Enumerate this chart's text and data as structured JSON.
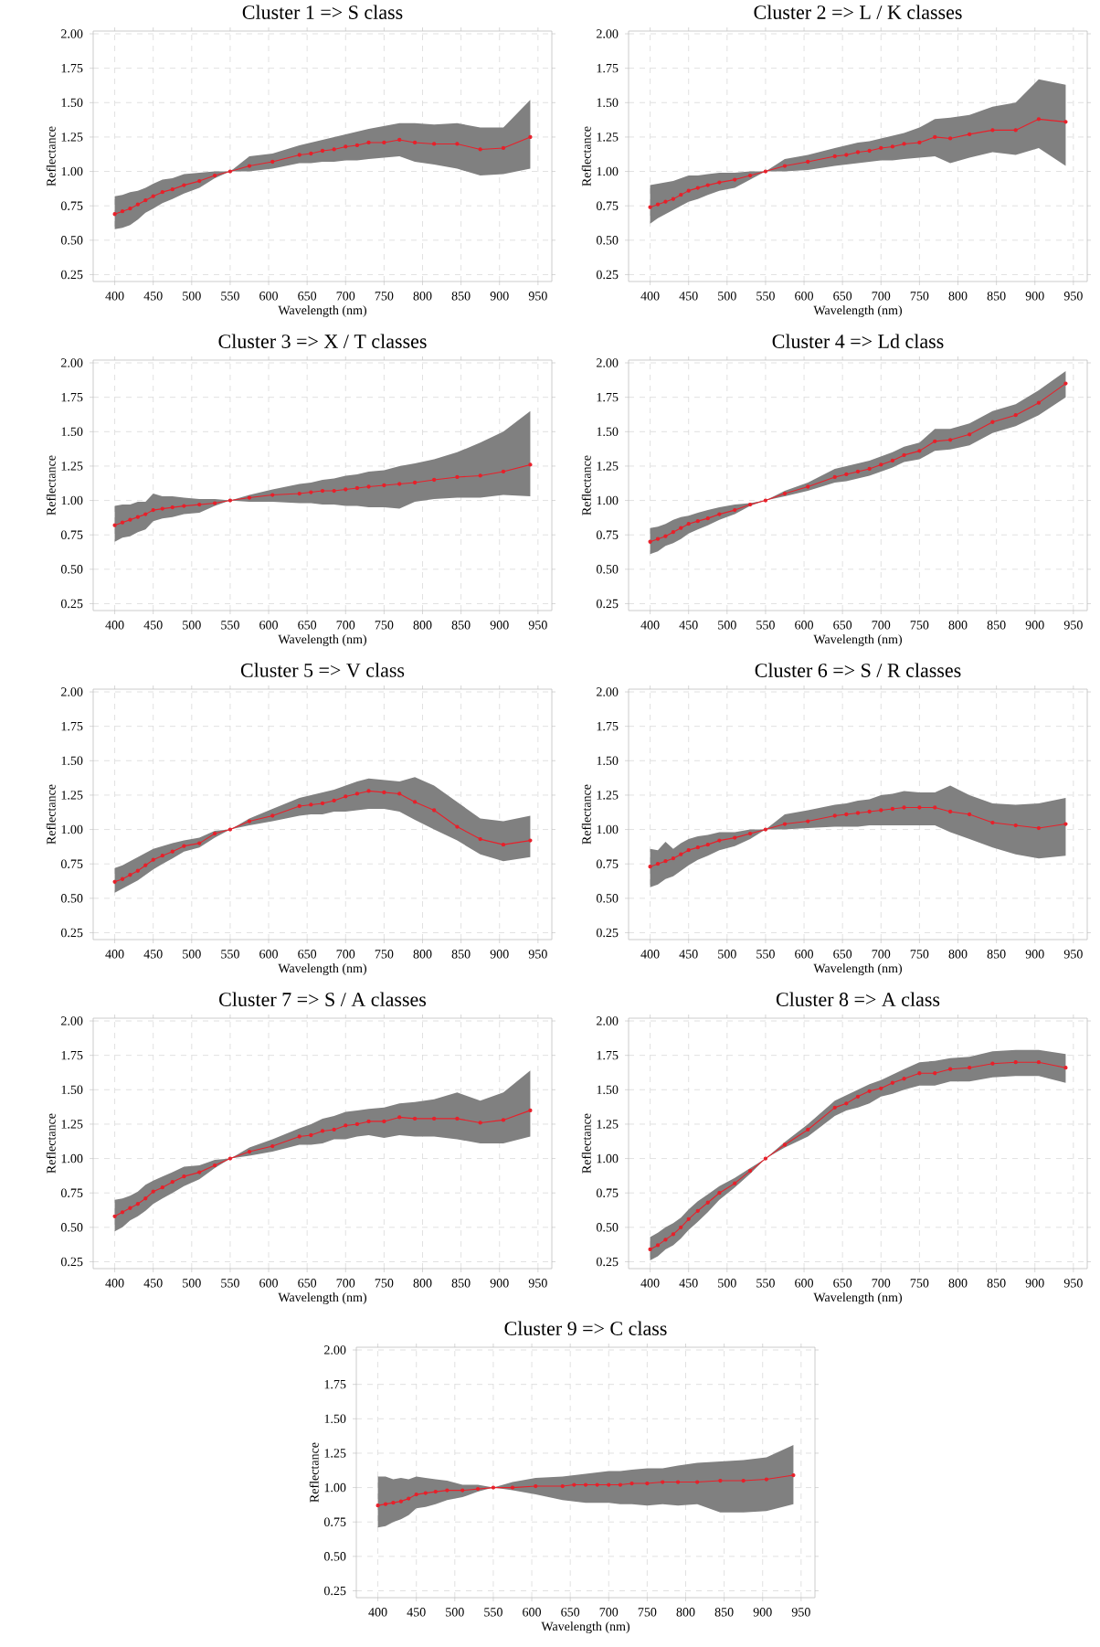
{
  "chart_data": [
    {
      "type": "line",
      "title": "Cluster 1 => S class",
      "xlabel": "Wavelength (nm)",
      "ylabel": "Reflectance",
      "xlim": [
        372,
        968
      ],
      "ylim": [
        0.2,
        2.02
      ],
      "xticks": [
        400,
        450,
        500,
        550,
        600,
        650,
        700,
        750,
        800,
        850,
        900,
        950
      ],
      "yticks": [
        {
          "value": 0.25,
          "label": "0.25"
        },
        {
          "value": 0.5,
          "label": "0.50"
        },
        {
          "value": 0.75,
          "label": "0.75"
        },
        {
          "value": 1.0,
          "label": "1.00"
        },
        {
          "value": 1.25,
          "label": "1.25"
        },
        {
          "value": 1.5,
          "label": "1.50"
        },
        {
          "value": 1.75,
          "label": "1.75"
        },
        {
          "value": 2.0,
          "label": "2.00"
        }
      ],
      "grid": true,
      "marker": "circle",
      "x": [
        400,
        410,
        420,
        430,
        440,
        450,
        462,
        475,
        490,
        510,
        530,
        550,
        575,
        605,
        640,
        655,
        670,
        685,
        700,
        715,
        730,
        750,
        770,
        790,
        815,
        845,
        875,
        905,
        940
      ],
      "series": [
        {
          "color": "#e8202a",
          "values": [
            0.69,
            0.71,
            0.73,
            0.76,
            0.79,
            0.82,
            0.85,
            0.87,
            0.9,
            0.93,
            0.97,
            1.0,
            1.04,
            1.07,
            1.12,
            1.13,
            1.15,
            1.16,
            1.18,
            1.19,
            1.21,
            1.21,
            1.23,
            1.21,
            1.2,
            1.2,
            1.16,
            1.17,
            1.25
          ],
          "lower": [
            0.58,
            0.59,
            0.61,
            0.65,
            0.7,
            0.73,
            0.77,
            0.8,
            0.84,
            0.88,
            0.95,
            1.0,
            1.0,
            1.02,
            1.06,
            1.06,
            1.07,
            1.07,
            1.08,
            1.08,
            1.09,
            1.1,
            1.11,
            1.07,
            1.05,
            1.02,
            0.97,
            0.98,
            1.02
          ],
          "upper": [
            0.82,
            0.83,
            0.85,
            0.86,
            0.88,
            0.91,
            0.94,
            0.95,
            0.98,
            0.99,
            1.0,
            1.0,
            1.11,
            1.13,
            1.19,
            1.21,
            1.23,
            1.25,
            1.27,
            1.29,
            1.31,
            1.33,
            1.35,
            1.35,
            1.34,
            1.35,
            1.32,
            1.32,
            1.52
          ]
        }
      ]
    },
    {
      "type": "line",
      "title": "Cluster 2 => L / K classes",
      "xlabel": "Wavelength (nm)",
      "ylabel": "Reflectance",
      "xlim": [
        372,
        968
      ],
      "ylim": [
        0.2,
        2.02
      ],
      "xticks": [
        400,
        450,
        500,
        550,
        600,
        650,
        700,
        750,
        800,
        850,
        900,
        950
      ],
      "yticks": [
        {
          "value": 0.25,
          "label": "0.25"
        },
        {
          "value": 0.5,
          "label": "0.50"
        },
        {
          "value": 0.75,
          "label": "0.75"
        },
        {
          "value": 1.0,
          "label": "1.00"
        },
        {
          "value": 1.25,
          "label": "1.25"
        },
        {
          "value": 1.5,
          "label": "1.50"
        },
        {
          "value": 1.75,
          "label": "1.75"
        },
        {
          "value": 2.0,
          "label": "2.00"
        }
      ],
      "grid": true,
      "marker": "circle",
      "x": [
        400,
        410,
        420,
        430,
        440,
        450,
        462,
        475,
        490,
        510,
        530,
        550,
        575,
        605,
        640,
        655,
        670,
        685,
        700,
        715,
        730,
        750,
        770,
        790,
        815,
        845,
        875,
        905,
        940
      ],
      "series": [
        {
          "color": "#e8202a",
          "values": [
            0.74,
            0.76,
            0.78,
            0.8,
            0.83,
            0.86,
            0.88,
            0.9,
            0.92,
            0.94,
            0.97,
            1.0,
            1.04,
            1.07,
            1.11,
            1.12,
            1.14,
            1.15,
            1.17,
            1.18,
            1.2,
            1.21,
            1.25,
            1.24,
            1.27,
            1.3,
            1.3,
            1.38,
            1.36
          ],
          "lower": [
            0.62,
            0.66,
            0.69,
            0.72,
            0.75,
            0.78,
            0.8,
            0.83,
            0.86,
            0.88,
            0.94,
            1.0,
            1.0,
            1.01,
            1.04,
            1.05,
            1.06,
            1.07,
            1.08,
            1.08,
            1.09,
            1.1,
            1.11,
            1.06,
            1.1,
            1.14,
            1.12,
            1.17,
            1.04
          ],
          "upper": [
            0.9,
            0.91,
            0.92,
            0.93,
            0.95,
            0.97,
            0.97,
            0.98,
            0.99,
            0.99,
            1.0,
            1.0,
            1.09,
            1.12,
            1.17,
            1.19,
            1.21,
            1.22,
            1.24,
            1.26,
            1.28,
            1.32,
            1.38,
            1.39,
            1.41,
            1.47,
            1.5,
            1.67,
            1.63
          ]
        }
      ]
    },
    {
      "type": "line",
      "title": "Cluster 3 => X / T classes",
      "xlabel": "Wavelength (nm)",
      "ylabel": "Reflectance",
      "xlim": [
        372,
        968
      ],
      "ylim": [
        0.2,
        2.02
      ],
      "xticks": [
        400,
        450,
        500,
        550,
        600,
        650,
        700,
        750,
        800,
        850,
        900,
        950
      ],
      "yticks": [
        {
          "value": 0.25,
          "label": "0.25"
        },
        {
          "value": 0.5,
          "label": "0.50"
        },
        {
          "value": 0.75,
          "label": "0.75"
        },
        {
          "value": 1.0,
          "label": "1.00"
        },
        {
          "value": 1.25,
          "label": "1.25"
        },
        {
          "value": 1.5,
          "label": "1.50"
        },
        {
          "value": 1.75,
          "label": "1.75"
        },
        {
          "value": 2.0,
          "label": "2.00"
        }
      ],
      "grid": true,
      "marker": "circle",
      "x": [
        400,
        410,
        420,
        430,
        440,
        450,
        462,
        475,
        490,
        510,
        530,
        550,
        575,
        605,
        640,
        655,
        670,
        685,
        700,
        715,
        730,
        750,
        770,
        790,
        815,
        845,
        875,
        905,
        940
      ],
      "series": [
        {
          "color": "#e8202a",
          "values": [
            0.82,
            0.84,
            0.86,
            0.88,
            0.9,
            0.93,
            0.94,
            0.95,
            0.96,
            0.97,
            0.98,
            1.0,
            1.02,
            1.04,
            1.05,
            1.06,
            1.07,
            1.07,
            1.08,
            1.09,
            1.1,
            1.11,
            1.12,
            1.13,
            1.15,
            1.17,
            1.18,
            1.21,
            1.26
          ],
          "lower": [
            0.7,
            0.73,
            0.74,
            0.77,
            0.79,
            0.85,
            0.87,
            0.88,
            0.9,
            0.91,
            0.96,
            1.0,
            0.99,
            0.99,
            0.98,
            0.98,
            0.97,
            0.97,
            0.96,
            0.96,
            0.95,
            0.95,
            0.94,
            0.99,
            1.01,
            1.02,
            1.02,
            1.04,
            1.03
          ],
          "upper": [
            0.96,
            0.97,
            0.97,
            0.99,
            0.99,
            1.05,
            1.03,
            1.03,
            1.02,
            1.01,
            1.01,
            1.0,
            1.04,
            1.08,
            1.12,
            1.13,
            1.15,
            1.16,
            1.18,
            1.19,
            1.21,
            1.22,
            1.25,
            1.27,
            1.3,
            1.35,
            1.42,
            1.5,
            1.65
          ]
        }
      ]
    },
    {
      "type": "line",
      "title": "Cluster 4 => Ld class",
      "xlabel": "Wavelength (nm)",
      "ylabel": "Reflectance",
      "xlim": [
        372,
        968
      ],
      "ylim": [
        0.2,
        2.02
      ],
      "xticks": [
        400,
        450,
        500,
        550,
        600,
        650,
        700,
        750,
        800,
        850,
        900,
        950
      ],
      "yticks": [
        {
          "value": 0.25,
          "label": "0.25"
        },
        {
          "value": 0.5,
          "label": "0.50"
        },
        {
          "value": 0.75,
          "label": "0.75"
        },
        {
          "value": 1.0,
          "label": "1.00"
        },
        {
          "value": 1.25,
          "label": "1.25"
        },
        {
          "value": 1.5,
          "label": "1.50"
        },
        {
          "value": 1.75,
          "label": "1.75"
        },
        {
          "value": 2.0,
          "label": "2.00"
        }
      ],
      "grid": true,
      "marker": "circle",
      "x": [
        400,
        410,
        420,
        430,
        440,
        450,
        462,
        475,
        490,
        510,
        530,
        550,
        575,
        605,
        640,
        655,
        670,
        685,
        700,
        715,
        730,
        750,
        770,
        790,
        815,
        845,
        875,
        905,
        940
      ],
      "series": [
        {
          "color": "#e8202a",
          "values": [
            0.7,
            0.72,
            0.74,
            0.77,
            0.8,
            0.83,
            0.85,
            0.87,
            0.9,
            0.93,
            0.97,
            1.0,
            1.05,
            1.1,
            1.17,
            1.19,
            1.21,
            1.23,
            1.26,
            1.29,
            1.33,
            1.36,
            1.43,
            1.44,
            1.48,
            1.57,
            1.62,
            1.71,
            1.85
          ],
          "lower": [
            0.61,
            0.63,
            0.67,
            0.69,
            0.72,
            0.76,
            0.79,
            0.82,
            0.86,
            0.9,
            0.96,
            1.0,
            1.03,
            1.07,
            1.13,
            1.14,
            1.16,
            1.18,
            1.21,
            1.24,
            1.28,
            1.3,
            1.36,
            1.37,
            1.4,
            1.49,
            1.54,
            1.62,
            1.75
          ],
          "upper": [
            0.8,
            0.81,
            0.83,
            0.86,
            0.88,
            0.89,
            0.91,
            0.93,
            0.95,
            0.97,
            0.98,
            1.0,
            1.07,
            1.13,
            1.23,
            1.25,
            1.27,
            1.29,
            1.32,
            1.35,
            1.39,
            1.42,
            1.52,
            1.52,
            1.56,
            1.65,
            1.7,
            1.8,
            1.94
          ]
        }
      ]
    },
    {
      "type": "line",
      "title": "Cluster 5 => V class",
      "xlabel": "Wavelength (nm)",
      "ylabel": "Reflectance",
      "xlim": [
        372,
        968
      ],
      "ylim": [
        0.2,
        2.02
      ],
      "xticks": [
        400,
        450,
        500,
        550,
        600,
        650,
        700,
        750,
        800,
        850,
        900,
        950
      ],
      "yticks": [
        {
          "value": 0.25,
          "label": "0.25"
        },
        {
          "value": 0.5,
          "label": "0.50"
        },
        {
          "value": 0.75,
          "label": "0.75"
        },
        {
          "value": 1.0,
          "label": "1.00"
        },
        {
          "value": 1.25,
          "label": "1.25"
        },
        {
          "value": 1.5,
          "label": "1.50"
        },
        {
          "value": 1.75,
          "label": "1.75"
        },
        {
          "value": 2.0,
          "label": "2.00"
        }
      ],
      "grid": true,
      "marker": "circle",
      "x": [
        400,
        410,
        420,
        430,
        440,
        450,
        462,
        475,
        490,
        510,
        530,
        550,
        575,
        605,
        640,
        655,
        670,
        685,
        700,
        715,
        730,
        750,
        770,
        790,
        815,
        845,
        875,
        905,
        940
      ],
      "series": [
        {
          "color": "#e8202a",
          "values": [
            0.62,
            0.64,
            0.67,
            0.7,
            0.74,
            0.78,
            0.81,
            0.84,
            0.88,
            0.9,
            0.97,
            1.0,
            1.06,
            1.1,
            1.17,
            1.18,
            1.19,
            1.21,
            1.24,
            1.26,
            1.28,
            1.27,
            1.26,
            1.2,
            1.14,
            1.02,
            0.93,
            0.89,
            0.92
          ],
          "lower": [
            0.54,
            0.57,
            0.6,
            0.63,
            0.67,
            0.71,
            0.75,
            0.79,
            0.84,
            0.87,
            0.94,
            1.0,
            1.03,
            1.06,
            1.1,
            1.11,
            1.11,
            1.13,
            1.13,
            1.14,
            1.15,
            1.15,
            1.13,
            1.07,
            1.0,
            0.92,
            0.82,
            0.77,
            0.8
          ],
          "upper": [
            0.72,
            0.74,
            0.77,
            0.8,
            0.83,
            0.86,
            0.88,
            0.9,
            0.92,
            0.94,
            0.99,
            1.0,
            1.08,
            1.15,
            1.23,
            1.25,
            1.27,
            1.29,
            1.32,
            1.35,
            1.37,
            1.36,
            1.35,
            1.38,
            1.32,
            1.2,
            1.08,
            1.06,
            1.1
          ]
        }
      ]
    },
    {
      "type": "line",
      "title": "Cluster 6 => S / R classes",
      "xlabel": "Wavelength (nm)",
      "ylabel": "Reflectance",
      "xlim": [
        372,
        968
      ],
      "ylim": [
        0.2,
        2.02
      ],
      "xticks": [
        400,
        450,
        500,
        550,
        600,
        650,
        700,
        750,
        800,
        850,
        900,
        950
      ],
      "yticks": [
        {
          "value": 0.25,
          "label": "0.25"
        },
        {
          "value": 0.5,
          "label": "0.50"
        },
        {
          "value": 0.75,
          "label": "0.75"
        },
        {
          "value": 1.0,
          "label": "1.00"
        },
        {
          "value": 1.25,
          "label": "1.25"
        },
        {
          "value": 1.5,
          "label": "1.50"
        },
        {
          "value": 1.75,
          "label": "1.75"
        },
        {
          "value": 2.0,
          "label": "2.00"
        }
      ],
      "grid": true,
      "marker": "circle",
      "x": [
        400,
        410,
        420,
        430,
        440,
        450,
        462,
        475,
        490,
        510,
        530,
        550,
        575,
        605,
        640,
        655,
        670,
        685,
        700,
        715,
        730,
        750,
        770,
        790,
        815,
        845,
        875,
        905,
        940
      ],
      "series": [
        {
          "color": "#e8202a",
          "values": [
            0.73,
            0.75,
            0.77,
            0.79,
            0.82,
            0.85,
            0.87,
            0.89,
            0.92,
            0.94,
            0.97,
            1.0,
            1.04,
            1.06,
            1.1,
            1.11,
            1.12,
            1.13,
            1.14,
            1.15,
            1.16,
            1.16,
            1.16,
            1.13,
            1.11,
            1.05,
            1.03,
            1.01,
            1.04
          ],
          "lower": [
            0.58,
            0.6,
            0.64,
            0.66,
            0.7,
            0.74,
            0.78,
            0.81,
            0.85,
            0.88,
            0.93,
            1.0,
            1.0,
            1.01,
            1.02,
            1.02,
            1.02,
            1.03,
            1.03,
            1.03,
            1.03,
            1.03,
            1.03,
            0.98,
            0.93,
            0.87,
            0.82,
            0.79,
            0.81
          ],
          "upper": [
            0.86,
            0.85,
            0.91,
            0.86,
            0.9,
            0.93,
            0.95,
            0.96,
            0.98,
            0.98,
            1.0,
            1.0,
            1.11,
            1.14,
            1.18,
            1.19,
            1.21,
            1.22,
            1.25,
            1.26,
            1.28,
            1.27,
            1.27,
            1.32,
            1.25,
            1.19,
            1.18,
            1.19,
            1.23
          ]
        }
      ]
    },
    {
      "type": "line",
      "title": "Cluster 7 => S / A classes",
      "xlabel": "Wavelength (nm)",
      "ylabel": "Reflectance",
      "xlim": [
        372,
        968
      ],
      "ylim": [
        0.2,
        2.02
      ],
      "xticks": [
        400,
        450,
        500,
        550,
        600,
        650,
        700,
        750,
        800,
        850,
        900,
        950
      ],
      "yticks": [
        {
          "value": 0.25,
          "label": "0.25"
        },
        {
          "value": 0.5,
          "label": "0.50"
        },
        {
          "value": 0.75,
          "label": "0.75"
        },
        {
          "value": 1.0,
          "label": "1.00"
        },
        {
          "value": 1.25,
          "label": "1.25"
        },
        {
          "value": 1.5,
          "label": "1.50"
        },
        {
          "value": 1.75,
          "label": "1.75"
        },
        {
          "value": 2.0,
          "label": "2.00"
        }
      ],
      "grid": true,
      "marker": "circle",
      "x": [
        400,
        410,
        420,
        430,
        440,
        450,
        462,
        475,
        490,
        510,
        530,
        550,
        575,
        605,
        640,
        655,
        670,
        685,
        700,
        715,
        730,
        750,
        770,
        790,
        815,
        845,
        875,
        905,
        940
      ],
      "series": [
        {
          "color": "#e8202a",
          "values": [
            0.58,
            0.61,
            0.64,
            0.67,
            0.71,
            0.76,
            0.79,
            0.83,
            0.87,
            0.9,
            0.95,
            1.0,
            1.05,
            1.09,
            1.16,
            1.17,
            1.2,
            1.21,
            1.24,
            1.25,
            1.27,
            1.27,
            1.3,
            1.29,
            1.29,
            1.29,
            1.26,
            1.28,
            1.35
          ],
          "lower": [
            0.47,
            0.5,
            0.55,
            0.58,
            0.62,
            0.67,
            0.71,
            0.75,
            0.8,
            0.85,
            0.93,
            1.0,
            1.02,
            1.05,
            1.1,
            1.1,
            1.11,
            1.14,
            1.14,
            1.16,
            1.17,
            1.15,
            1.17,
            1.16,
            1.16,
            1.14,
            1.11,
            1.11,
            1.16
          ],
          "upper": [
            0.7,
            0.71,
            0.73,
            0.76,
            0.81,
            0.84,
            0.87,
            0.9,
            0.94,
            0.95,
            0.99,
            1.0,
            1.08,
            1.14,
            1.22,
            1.25,
            1.29,
            1.31,
            1.34,
            1.35,
            1.36,
            1.37,
            1.4,
            1.41,
            1.43,
            1.48,
            1.42,
            1.48,
            1.64
          ]
        }
      ]
    },
    {
      "type": "line",
      "title": "Cluster 8 => A class",
      "xlabel": "Wavelength (nm)",
      "ylabel": "Reflectance",
      "xlim": [
        372,
        968
      ],
      "ylim": [
        0.2,
        2.02
      ],
      "xticks": [
        400,
        450,
        500,
        550,
        600,
        650,
        700,
        750,
        800,
        850,
        900,
        950
      ],
      "yticks": [
        {
          "value": 0.25,
          "label": "0.25"
        },
        {
          "value": 0.5,
          "label": "0.50"
        },
        {
          "value": 0.75,
          "label": "0.75"
        },
        {
          "value": 1.0,
          "label": "1.00"
        },
        {
          "value": 1.25,
          "label": "1.25"
        },
        {
          "value": 1.5,
          "label": "1.50"
        },
        {
          "value": 1.75,
          "label": "1.75"
        },
        {
          "value": 2.0,
          "label": "2.00"
        }
      ],
      "grid": true,
      "marker": "circle",
      "x": [
        400,
        410,
        420,
        430,
        440,
        450,
        462,
        475,
        490,
        510,
        530,
        550,
        575,
        605,
        640,
        655,
        670,
        685,
        700,
        715,
        730,
        750,
        770,
        790,
        815,
        845,
        875,
        905,
        940
      ],
      "series": [
        {
          "color": "#e8202a",
          "values": [
            0.34,
            0.37,
            0.41,
            0.45,
            0.5,
            0.56,
            0.62,
            0.68,
            0.75,
            0.82,
            0.91,
            1.0,
            1.1,
            1.21,
            1.37,
            1.4,
            1.45,
            1.49,
            1.51,
            1.55,
            1.58,
            1.62,
            1.62,
            1.65,
            1.66,
            1.69,
            1.7,
            1.7,
            1.66
          ],
          "lower": [
            0.26,
            0.29,
            0.34,
            0.37,
            0.42,
            0.48,
            0.54,
            0.61,
            0.7,
            0.79,
            0.89,
            1.0,
            1.08,
            1.16,
            1.31,
            1.35,
            1.37,
            1.4,
            1.45,
            1.47,
            1.5,
            1.53,
            1.53,
            1.56,
            1.56,
            1.59,
            1.6,
            1.6,
            1.55
          ],
          "upper": [
            0.43,
            0.46,
            0.5,
            0.53,
            0.57,
            0.63,
            0.69,
            0.74,
            0.8,
            0.86,
            0.93,
            1.0,
            1.12,
            1.25,
            1.42,
            1.46,
            1.5,
            1.54,
            1.57,
            1.61,
            1.65,
            1.7,
            1.71,
            1.73,
            1.74,
            1.78,
            1.79,
            1.79,
            1.76
          ]
        }
      ]
    },
    {
      "type": "line",
      "title": "Cluster 9 => C class",
      "xlabel": "Wavelength (nm)",
      "ylabel": "Reflectance",
      "xlim": [
        372,
        968
      ],
      "ylim": [
        0.2,
        2.02
      ],
      "xticks": [
        400,
        450,
        500,
        550,
        600,
        650,
        700,
        750,
        800,
        850,
        900,
        950
      ],
      "yticks": [
        {
          "value": 0.25,
          "label": "0.25"
        },
        {
          "value": 0.5,
          "label": "0.50"
        },
        {
          "value": 0.75,
          "label": "0.75"
        },
        {
          "value": 1.0,
          "label": "1.00"
        },
        {
          "value": 1.25,
          "label": "1.25"
        },
        {
          "value": 1.5,
          "label": "1.50"
        },
        {
          "value": 1.75,
          "label": "1.75"
        },
        {
          "value": 2.0,
          "label": "2.00"
        }
      ],
      "grid": true,
      "marker": "circle",
      "x": [
        400,
        410,
        420,
        430,
        440,
        450,
        462,
        475,
        490,
        510,
        530,
        550,
        575,
        605,
        640,
        655,
        670,
        685,
        700,
        715,
        730,
        750,
        770,
        790,
        815,
        845,
        875,
        905,
        940
      ],
      "series": [
        {
          "color": "#e8202a",
          "values": [
            0.87,
            0.88,
            0.89,
            0.9,
            0.92,
            0.95,
            0.96,
            0.97,
            0.98,
            0.98,
            0.99,
            1.0,
            1.0,
            1.01,
            1.01,
            1.02,
            1.02,
            1.02,
            1.02,
            1.02,
            1.03,
            1.03,
            1.04,
            1.04,
            1.04,
            1.05,
            1.05,
            1.06,
            1.09
          ],
          "lower": [
            0.71,
            0.72,
            0.75,
            0.77,
            0.8,
            0.85,
            0.86,
            0.88,
            0.91,
            0.93,
            0.97,
            1.0,
            0.98,
            0.95,
            0.91,
            0.9,
            0.89,
            0.89,
            0.89,
            0.88,
            0.88,
            0.87,
            0.88,
            0.87,
            0.88,
            0.82,
            0.82,
            0.83,
            0.88
          ],
          "upper": [
            1.08,
            1.08,
            1.06,
            1.07,
            1.06,
            1.08,
            1.07,
            1.06,
            1.05,
            1.02,
            1.02,
            1.0,
            1.04,
            1.07,
            1.08,
            1.09,
            1.1,
            1.11,
            1.12,
            1.12,
            1.13,
            1.14,
            1.14,
            1.16,
            1.18,
            1.19,
            1.2,
            1.22,
            1.31
          ]
        }
      ]
    }
  ]
}
